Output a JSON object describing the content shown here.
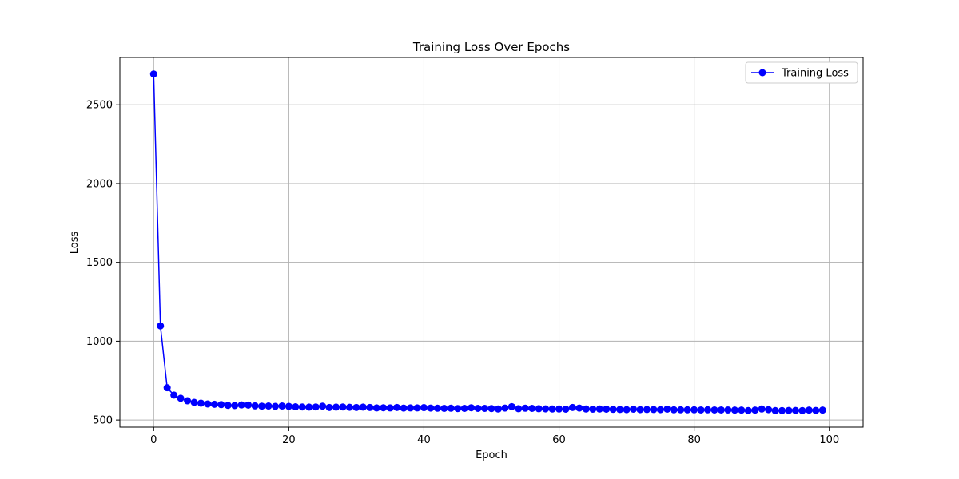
{
  "chart_data": {
    "type": "line",
    "title": "Training Loss Over Epochs",
    "xlabel": "Epoch",
    "ylabel": "Loss",
    "xlim": [
      -5,
      105
    ],
    "ylim": [
      455,
      2800
    ],
    "x_ticks": [
      0,
      20,
      40,
      60,
      80,
      100
    ],
    "y_ticks": [
      500,
      1000,
      1500,
      2000,
      2500
    ],
    "grid": true,
    "legend_position": "top-right",
    "series": [
      {
        "name": "Training Loss",
        "color": "#0000ff",
        "marker": "circle",
        "x": [
          0,
          1,
          2,
          3,
          4,
          5,
          6,
          7,
          8,
          9,
          10,
          11,
          12,
          13,
          14,
          15,
          16,
          17,
          18,
          19,
          20,
          21,
          22,
          23,
          24,
          25,
          26,
          27,
          28,
          29,
          30,
          31,
          32,
          33,
          34,
          35,
          36,
          37,
          38,
          39,
          40,
          41,
          42,
          43,
          44,
          45,
          46,
          47,
          48,
          49,
          50,
          51,
          52,
          53,
          54,
          55,
          56,
          57,
          58,
          59,
          60,
          61,
          62,
          63,
          64,
          65,
          66,
          67,
          68,
          69,
          70,
          71,
          72,
          73,
          74,
          75,
          76,
          77,
          78,
          79,
          80,
          81,
          82,
          83,
          84,
          85,
          86,
          87,
          88,
          89,
          90,
          91,
          92,
          93,
          94,
          95,
          96,
          97,
          98,
          99
        ],
        "values": [
          2695,
          1097,
          705,
          658,
          638,
          622,
          612,
          607,
          602,
          600,
          598,
          593,
          592,
          596,
          595,
          590,
          588,
          589,
          587,
          589,
          587,
          584,
          583,
          582,
          583,
          588,
          580,
          582,
          583,
          581,
          580,
          582,
          580,
          577,
          578,
          577,
          580,
          576,
          577,
          577,
          579,
          576,
          575,
          574,
          575,
          573,
          574,
          578,
          574,
          574,
          573,
          570,
          576,
          585,
          572,
          575,
          574,
          572,
          571,
          570,
          570,
          569,
          580,
          576,
          570,
          569,
          570,
          569,
          568,
          567,
          566,
          569,
          566,
          567,
          567,
          566,
          569,
          565,
          565,
          565,
          565,
          564,
          565,
          564,
          564,
          564,
          563,
          563,
          560,
          563,
          570,
          566,
          560,
          560,
          561,
          561,
          560,
          563,
          561,
          563
        ]
      }
    ]
  }
}
